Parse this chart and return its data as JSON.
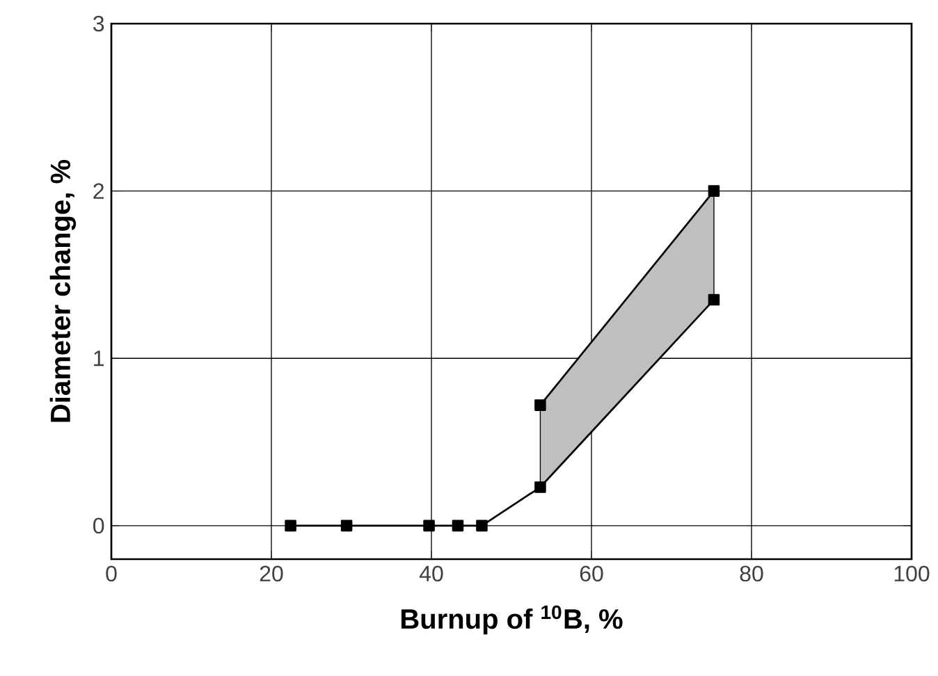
{
  "chart_data": {
    "type": "line",
    "xlabel": "Burnup of $^{10}$B, %",
    "ylabel": "Diameter change, %",
    "series": [
      {
        "color": "#000000",
        "x": [
          22.4,
          29.4,
          39.7,
          43.3,
          46.3,
          53.6,
          75.3
        ],
        "values": [
          0,
          0,
          0,
          0,
          0,
          0.23,
          1.35
        ]
      },
      {
        "color": "#000000",
        "x": [
          53.6,
          75.3
        ],
        "values": [
          0.72,
          2.0
        ],
        "lower": [
          0.23,
          1.35
        ],
        "upper": [
          0.72,
          2.0
        ]
      }
    ],
    "xlim": [
      0,
      100
    ],
    "ylim": [
      -0.2,
      3
    ],
    "xticks": [
      0,
      20,
      40,
      60,
      80,
      100
    ],
    "yticks": [
      0,
      1,
      2,
      3
    ],
    "grid": true,
    "marker": "square",
    "line_style": "solid"
  }
}
